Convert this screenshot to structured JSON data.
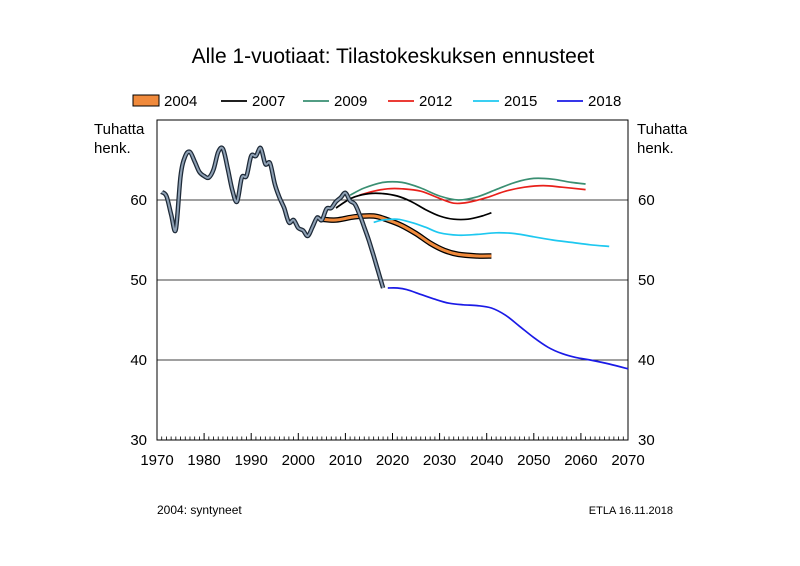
{
  "chart_data": {
    "type": "line",
    "title": "Alle 1-vuotiaat: Tilastokeskuksen ennusteet",
    "ylabel_left": [
      "Tuhatta",
      "henk."
    ],
    "ylabel_right": [
      "Tuhatta",
      "henk."
    ],
    "xlim": [
      1970,
      2070
    ],
    "ylim": [
      30,
      70
    ],
    "x_ticks": [
      1970,
      1980,
      1990,
      2000,
      2010,
      2020,
      2030,
      2040,
      2050,
      2060,
      2070
    ],
    "y_ticks": [
      30,
      40,
      50,
      60
    ],
    "gridlines_y": [
      40,
      50,
      60
    ],
    "grid": true,
    "legend_position": "top",
    "footnote": "2004: syntyneet",
    "source": "ETLA 16.11.2018",
    "series": [
      {
        "name": "2004",
        "color": "#f08a3c",
        "style": "band",
        "x": [
          2005,
          2008,
          2012,
          2016,
          2019,
          2022,
          2025,
          2028,
          2031,
          2034,
          2038,
          2041
        ],
        "values": [
          57.6,
          57.5,
          57.9,
          58.0,
          57.5,
          56.8,
          55.8,
          54.6,
          53.7,
          53.2,
          53.0,
          53.0
        ]
      },
      {
        "name": "2007",
        "color": "#000000",
        "x": [
          2008,
          2010,
          2012,
          2015,
          2018,
          2021,
          2024,
          2027,
          2030,
          2033,
          2036,
          2039,
          2041
        ],
        "values": [
          59.0,
          59.8,
          60.4,
          60.8,
          60.8,
          60.5,
          59.8,
          58.8,
          58.0,
          57.6,
          57.6,
          58.0,
          58.4
        ]
      },
      {
        "name": "2009",
        "color": "#3a8f72",
        "x": [
          2011,
          2014,
          2018,
          2022,
          2026,
          2030,
          2034,
          2038,
          2042,
          2046,
          2050,
          2054,
          2058,
          2061
        ],
        "values": [
          60.6,
          61.5,
          62.2,
          62.2,
          61.5,
          60.5,
          60.0,
          60.4,
          61.3,
          62.2,
          62.7,
          62.6,
          62.2,
          62.0
        ]
      },
      {
        "name": "2012",
        "color": "#e8201a",
        "x": [
          2013,
          2016,
          2019,
          2022,
          2026,
          2030,
          2033,
          2036,
          2040,
          2044,
          2048,
          2052,
          2056,
          2061
        ],
        "values": [
          60.6,
          61.1,
          61.4,
          61.4,
          61.1,
          60.2,
          59.6,
          59.7,
          60.3,
          61.1,
          61.6,
          61.8,
          61.6,
          61.3
        ]
      },
      {
        "name": "2015",
        "color": "#1ec8f0",
        "x": [
          2016,
          2018,
          2021,
          2024,
          2027,
          2030,
          2034,
          2038,
          2042,
          2046,
          2050,
          2054,
          2058,
          2062,
          2066
        ],
        "values": [
          57.2,
          57.5,
          57.6,
          57.2,
          56.6,
          55.9,
          55.6,
          55.7,
          55.9,
          55.8,
          55.4,
          55.0,
          54.7,
          54.4,
          54.2
        ]
      },
      {
        "name": "2018",
        "color": "#1a1ae6",
        "x": [
          2019,
          2021,
          2023,
          2026,
          2029,
          2032,
          2035,
          2038,
          2041,
          2044,
          2047,
          2050,
          2053,
          2056,
          2059,
          2062,
          2066,
          2070
        ],
        "values": [
          49.0,
          49.0,
          48.8,
          48.2,
          47.6,
          47.1,
          46.9,
          46.8,
          46.5,
          45.6,
          44.2,
          42.8,
          41.6,
          40.8,
          40.3,
          40.0,
          39.5,
          38.9
        ]
      },
      {
        "name": "syntyneet",
        "color": "#8ea0b4",
        "style": "history",
        "x": [
          1971,
          1972,
          1973,
          1974,
          1975,
          1976,
          1977,
          1978,
          1979,
          1980,
          1981,
          1982,
          1983,
          1984,
          1985,
          1986,
          1987,
          1988,
          1989,
          1990,
          1991,
          1992,
          1993,
          1994,
          1995,
          1996,
          1997,
          1998,
          1999,
          2000,
          2001,
          2002,
          2003,
          2004,
          2005,
          2006,
          2007,
          2008,
          2009,
          2010,
          2011,
          2012,
          2013,
          2014,
          2015,
          2016,
          2017,
          2018
        ],
        "values": [
          61.0,
          60.5,
          58.2,
          56.3,
          63.0,
          65.5,
          66.0,
          64.8,
          63.5,
          63.0,
          62.8,
          63.8,
          66.0,
          66.4,
          64.0,
          61.2,
          59.8,
          62.8,
          63.0,
          65.5,
          65.5,
          66.5,
          64.5,
          64.6,
          62.0,
          60.3,
          59.0,
          57.2,
          57.5,
          56.5,
          56.2,
          55.5,
          56.6,
          57.8,
          57.5,
          58.9,
          59.0,
          59.8,
          60.3,
          60.9,
          59.9,
          59.5,
          58.2,
          56.6,
          54.9,
          53.0,
          51.0,
          49.0
        ]
      }
    ]
  }
}
